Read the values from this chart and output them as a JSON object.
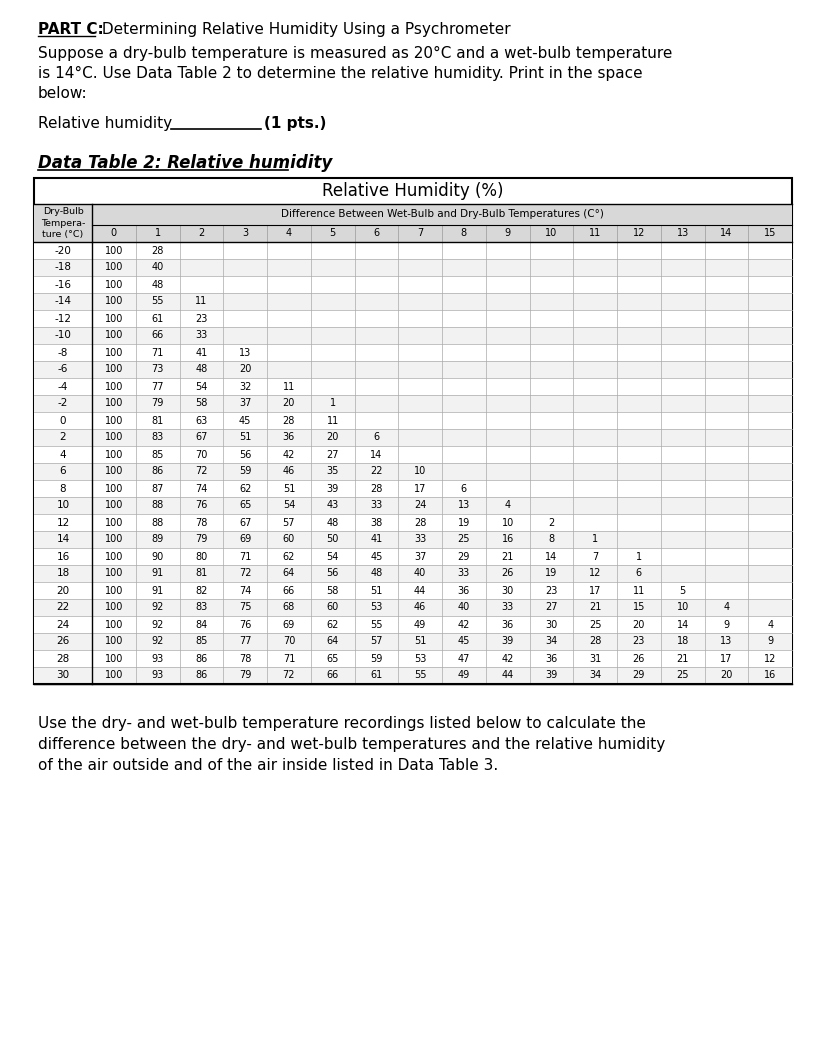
{
  "part_c_label": "PART C:",
  "part_c_title": " Determining Relative Humidity Using a Psychrometer",
  "paragraph1_lines": [
    "Suppose a dry-bulb temperature is measured as 20°C and a wet-bulb temperature",
    "is 14°C. Use Data Table 2 to determine the relative humidity. Print in the space",
    "below:"
  ],
  "relative_humidity_label": "Relative humidity",
  "pts_label": "(1 pts.)",
  "data_table_title": "Data Table 2: Relative humidity",
  "table_main_header": "Relative Humidity (%)",
  "col_header_left": "Dry-Bulb\nTempera-\nture (°C)",
  "col_header_right": "Difference Between Wet-Bulb and Dry-Bulb Temperatures (C°)",
  "diff_cols": [
    0,
    1,
    2,
    3,
    4,
    5,
    6,
    7,
    8,
    9,
    10,
    11,
    12,
    13,
    14,
    15
  ],
  "rows": [
    {
      "temp": "-20",
      "values": [
        100,
        28,
        "",
        "",
        "",
        "",
        "",
        "",
        "",
        "",
        "",
        "",
        "",
        "",
        "",
        ""
      ]
    },
    {
      "temp": "-18",
      "values": [
        100,
        40,
        "",
        "",
        "",
        "",
        "",
        "",
        "",
        "",
        "",
        "",
        "",
        "",
        "",
        ""
      ]
    },
    {
      "temp": "-16",
      "values": [
        100,
        48,
        "",
        "",
        "",
        "",
        "",
        "",
        "",
        "",
        "",
        "",
        "",
        "",
        "",
        ""
      ]
    },
    {
      "temp": "-14",
      "values": [
        100,
        55,
        11,
        "",
        "",
        "",
        "",
        "",
        "",
        "",
        "",
        "",
        "",
        "",
        "",
        ""
      ]
    },
    {
      "temp": "-12",
      "values": [
        100,
        61,
        23,
        "",
        "",
        "",
        "",
        "",
        "",
        "",
        "",
        "",
        "",
        "",
        "",
        ""
      ]
    },
    {
      "temp": "-10",
      "values": [
        100,
        66,
        33,
        "",
        "",
        "",
        "",
        "",
        "",
        "",
        "",
        "",
        "",
        "",
        "",
        ""
      ]
    },
    {
      "temp": "-8",
      "values": [
        100,
        71,
        41,
        13,
        "",
        "",
        "",
        "",
        "",
        "",
        "",
        "",
        "",
        "",
        "",
        ""
      ]
    },
    {
      "temp": "-6",
      "values": [
        100,
        73,
        48,
        20,
        "",
        "",
        "",
        "",
        "",
        "",
        "",
        "",
        "",
        "",
        "",
        ""
      ]
    },
    {
      "temp": "-4",
      "values": [
        100,
        77,
        54,
        32,
        11,
        "",
        "",
        "",
        "",
        "",
        "",
        "",
        "",
        "",
        "",
        ""
      ]
    },
    {
      "temp": "-2",
      "values": [
        100,
        79,
        58,
        37,
        20,
        1,
        "",
        "",
        "",
        "",
        "",
        "",
        "",
        "",
        "",
        ""
      ]
    },
    {
      "temp": "0",
      "values": [
        100,
        81,
        63,
        45,
        28,
        11,
        "",
        "",
        "",
        "",
        "",
        "",
        "",
        "",
        "",
        ""
      ]
    },
    {
      "temp": "2",
      "values": [
        100,
        83,
        67,
        51,
        36,
        20,
        6,
        "",
        "",
        "",
        "",
        "",
        "",
        "",
        "",
        ""
      ]
    },
    {
      "temp": "4",
      "values": [
        100,
        85,
        70,
        56,
        42,
        27,
        14,
        "",
        "",
        "",
        "",
        "",
        "",
        "",
        "",
        ""
      ]
    },
    {
      "temp": "6",
      "values": [
        100,
        86,
        72,
        59,
        46,
        35,
        22,
        10,
        "",
        "",
        "",
        "",
        "",
        "",
        "",
        ""
      ]
    },
    {
      "temp": "8",
      "values": [
        100,
        87,
        74,
        62,
        51,
        39,
        28,
        17,
        6,
        "",
        "",
        "",
        "",
        "",
        "",
        ""
      ]
    },
    {
      "temp": "10",
      "values": [
        100,
        88,
        76,
        65,
        54,
        43,
        33,
        24,
        13,
        4,
        "",
        "",
        "",
        "",
        "",
        ""
      ]
    },
    {
      "temp": "12",
      "values": [
        100,
        88,
        78,
        67,
        57,
        48,
        38,
        28,
        19,
        10,
        2,
        "",
        "",
        "",
        "",
        ""
      ]
    },
    {
      "temp": "14",
      "values": [
        100,
        89,
        79,
        69,
        60,
        50,
        41,
        33,
        25,
        16,
        8,
        1,
        "",
        "",
        "",
        ""
      ]
    },
    {
      "temp": "16",
      "values": [
        100,
        90,
        80,
        71,
        62,
        54,
        45,
        37,
        29,
        21,
        14,
        7,
        1,
        "",
        "",
        ""
      ]
    },
    {
      "temp": "18",
      "values": [
        100,
        91,
        81,
        72,
        64,
        56,
        48,
        40,
        33,
        26,
        19,
        12,
        6,
        "",
        "",
        ""
      ]
    },
    {
      "temp": "20",
      "values": [
        100,
        91,
        82,
        74,
        66,
        58,
        51,
        44,
        36,
        30,
        23,
        17,
        11,
        5,
        "",
        ""
      ]
    },
    {
      "temp": "22",
      "values": [
        100,
        92,
        83,
        75,
        68,
        60,
        53,
        46,
        40,
        33,
        27,
        21,
        15,
        10,
        4,
        ""
      ]
    },
    {
      "temp": "24",
      "values": [
        100,
        92,
        84,
        76,
        69,
        62,
        55,
        49,
        42,
        36,
        30,
        25,
        20,
        14,
        9,
        4
      ]
    },
    {
      "temp": "26",
      "values": [
        100,
        92,
        85,
        77,
        70,
        64,
        57,
        51,
        45,
        39,
        34,
        28,
        23,
        18,
        13,
        9
      ]
    },
    {
      "temp": "28",
      "values": [
        100,
        93,
        86,
        78,
        71,
        65,
        59,
        53,
        47,
        42,
        36,
        31,
        26,
        21,
        17,
        12
      ]
    },
    {
      "temp": "30",
      "values": [
        100,
        93,
        86,
        79,
        72,
        66,
        61,
        55,
        49,
        44,
        39,
        34,
        29,
        25,
        20,
        16
      ]
    }
  ],
  "footer_lines": [
    "Use the dry- and wet-bulb temperature recordings listed below to calculate the",
    "difference between the dry- and wet-bulb temperatures and the relative humidity",
    "of the air outside and of the air inside listed in Data Table 3."
  ],
  "bg_color": "#ffffff"
}
